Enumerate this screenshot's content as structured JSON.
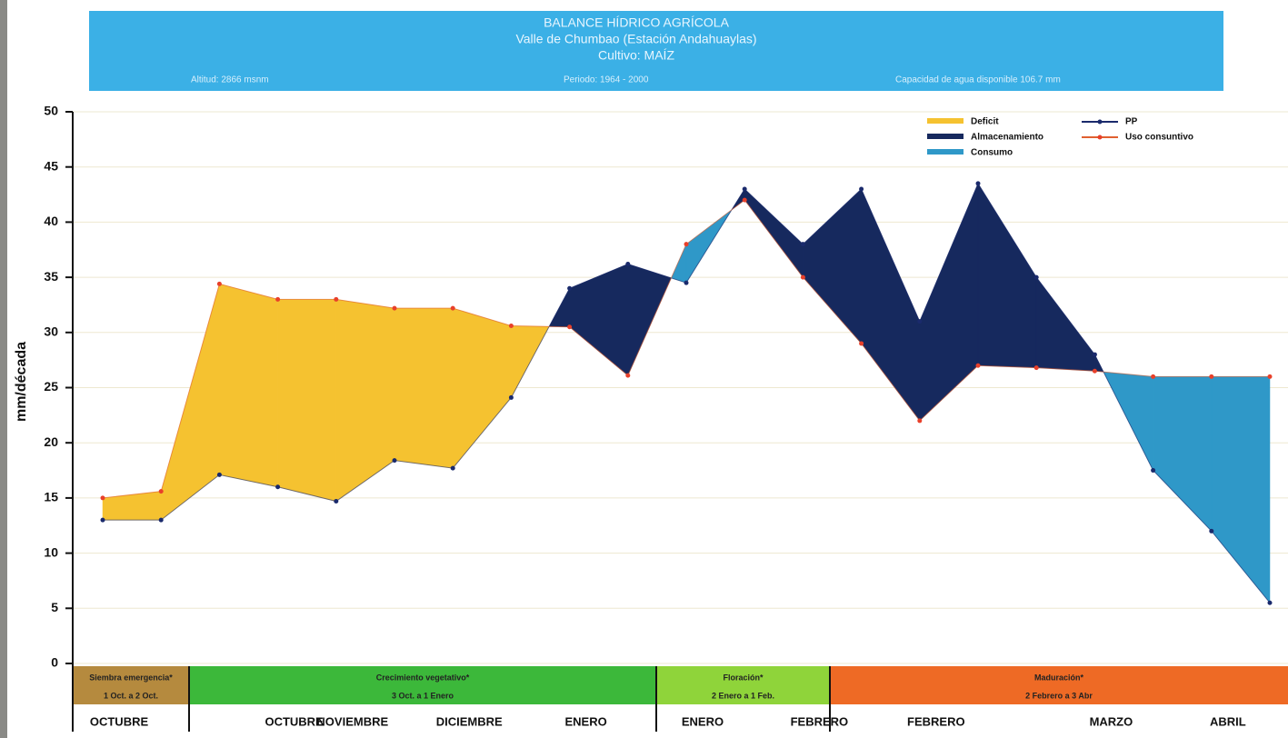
{
  "chart_data": {
    "type": "area",
    "title": "BALANCE HÍDRICO AGRÍCOLA",
    "subtitle": "Valle de Chumbao (Estación Andahuaylas)",
    "crop": "Cultivo: MAÍZ",
    "altitude": "Altitud: 2866 msnm",
    "period": "Periodo: 1964 - 2000",
    "capacity": "Capacidad de agua disponible 106.7 mm",
    "y_label": "mm/década",
    "ylim": [
      0,
      50
    ],
    "yticks": [
      0,
      5,
      10,
      15,
      20,
      25,
      30,
      35,
      40,
      45,
      50
    ],
    "grid": true,
    "legend": "top-right",
    "categories": [
      "OCTUBRE",
      null,
      null,
      "OCTUBRE",
      "NOVIEMBRE",
      null,
      "DICIEMBRE",
      null,
      "ENERO",
      null,
      "ENERO",
      null,
      "FEBRERO",
      null,
      "FEBRERO",
      null,
      null,
      "MARZO",
      null,
      "ABRIL",
      null
    ],
    "series": [
      {
        "name": "PP",
        "color": "#1a2a6c",
        "values": [
          13,
          13,
          17.1,
          16,
          14.7,
          18.4,
          17.7,
          24.1,
          34,
          36.2,
          34.5,
          43,
          38,
          43,
          31,
          43.5,
          35,
          28,
          17.5,
          12,
          5.5
        ]
      },
      {
        "name": "Uso consuntivo",
        "color": "#e06030",
        "values": [
          15,
          15.6,
          34.4,
          33,
          33,
          32.2,
          32.2,
          30.6,
          30.5,
          26.1,
          38,
          42,
          35,
          29,
          22,
          27,
          26.8,
          26.5,
          26,
          26,
          26
        ]
      }
    ],
    "areas": [
      {
        "name": "Deficit",
        "color": "#f5c230"
      },
      {
        "name": "Almacenamiento",
        "color": "#16295e"
      },
      {
        "name": "Consumo",
        "color": "#2f98c8"
      }
    ],
    "stages": [
      {
        "name": "Siembra emergencia*",
        "dates": "1 Oct. a 2 Oct.",
        "color": "#b58a3e"
      },
      {
        "name": "Crecimiento vegetativo*",
        "dates": "3 Oct. a 1 Enero",
        "color": "#3cb83a"
      },
      {
        "name": "Floración*",
        "dates": "2 Enero a 1 Feb.",
        "color": "#8fd43a"
      },
      {
        "name": "Maduración*",
        "dates": "2 Febrero a 3 Abr",
        "color": "#ee6a25"
      }
    ]
  }
}
